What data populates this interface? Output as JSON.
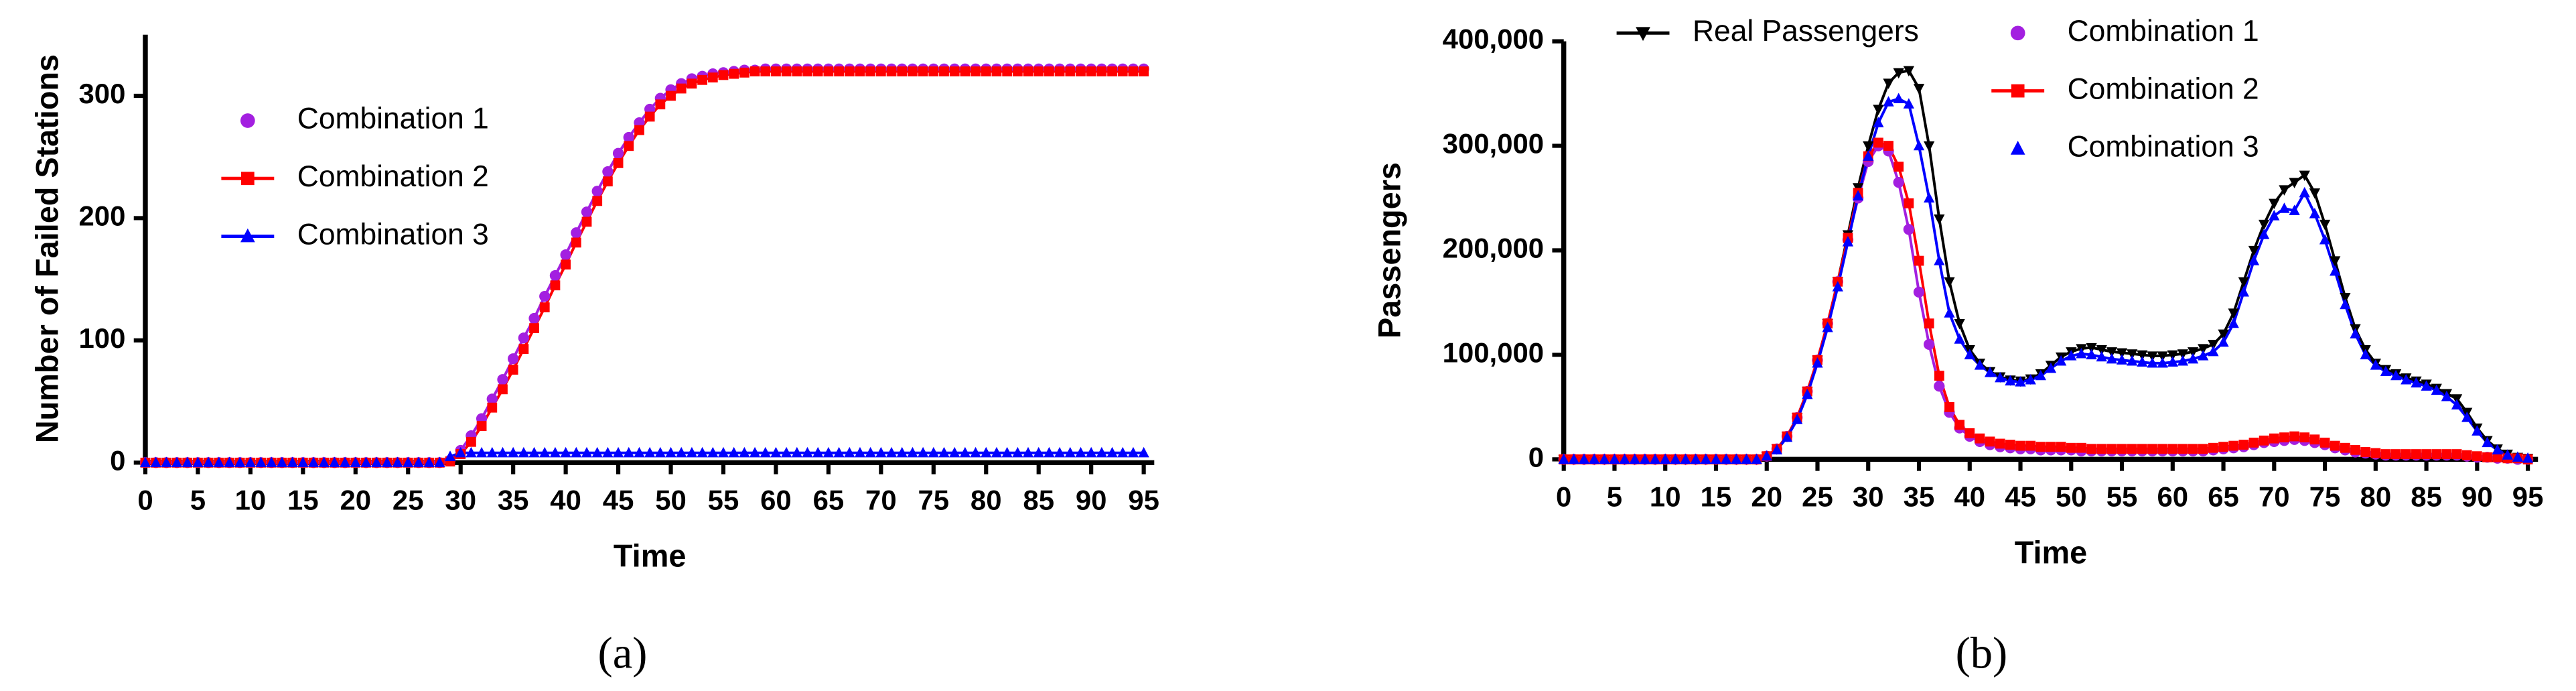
{
  "chart_data": [
    {
      "type": "line",
      "caption": "(a)",
      "x_label": "Time",
      "y_label": "Number of Failed Stations",
      "legend": "upper left",
      "x": [
        0,
        1,
        2,
        3,
        4,
        5,
        6,
        7,
        8,
        9,
        10,
        11,
        12,
        13,
        14,
        15,
        16,
        17,
        18,
        19,
        20,
        21,
        22,
        23,
        24,
        25,
        26,
        27,
        28,
        29,
        30,
        31,
        32,
        33,
        34,
        35,
        36,
        37,
        38,
        39,
        40,
        41,
        42,
        43,
        44,
        45,
        46,
        47,
        48,
        49,
        50,
        51,
        52,
        53,
        54,
        55,
        56,
        57,
        58,
        59,
        60,
        61,
        62,
        63,
        64,
        65,
        66,
        67,
        68,
        69,
        70,
        71,
        72,
        73,
        74,
        75,
        76,
        77,
        78,
        79,
        80,
        81,
        82,
        83,
        84,
        85,
        86,
        87,
        88,
        89,
        90,
        91,
        92,
        93,
        94,
        95
      ],
      "xlim": [
        0,
        96
      ],
      "xticks": [
        0,
        5,
        10,
        15,
        20,
        25,
        30,
        35,
        40,
        45,
        50,
        55,
        60,
        65,
        70,
        75,
        80,
        85,
        90,
        95
      ],
      "ylim": [
        0,
        350
      ],
      "yticks": [
        0,
        100,
        200,
        300
      ],
      "series": [
        {
          "name": "Combination 1",
          "color": "#a31fe0",
          "marker": "circle",
          "legend_line": false,
          "values": [
            0,
            0,
            0,
            0,
            0,
            0,
            0,
            0,
            0,
            0,
            0,
            0,
            0,
            0,
            0,
            0,
            0,
            0,
            0,
            0,
            0,
            0,
            0,
            0,
            0,
            0,
            0,
            0,
            0,
            2,
            10,
            22,
            36,
            52,
            68,
            85,
            102,
            118,
            136,
            153,
            170,
            188,
            205,
            222,
            238,
            253,
            266,
            278,
            289,
            298,
            305,
            310,
            314,
            316,
            318,
            319,
            320,
            321,
            321,
            322,
            322,
            322,
            322,
            322,
            322,
            322,
            322,
            322,
            322,
            322,
            322,
            322,
            322,
            322,
            322,
            322,
            322,
            322,
            322,
            322,
            322,
            322,
            322,
            322,
            322,
            322,
            322,
            322,
            322,
            322,
            322,
            322,
            322,
            322,
            322,
            322
          ]
        },
        {
          "name": "Combination 2",
          "color": "#ff0000",
          "marker": "square",
          "legend_line": true,
          "values": [
            0,
            0,
            0,
            0,
            0,
            0,
            0,
            0,
            0,
            0,
            0,
            0,
            0,
            0,
            0,
            0,
            0,
            0,
            0,
            0,
            0,
            0,
            0,
            0,
            0,
            0,
            0,
            0,
            0,
            1,
            7,
            17,
            30,
            45,
            60,
            76,
            93,
            110,
            127,
            145,
            162,
            180,
            197,
            214,
            230,
            245,
            259,
            272,
            283,
            293,
            300,
            306,
            310,
            313,
            315,
            317,
            318,
            319,
            320,
            320,
            320,
            320,
            320,
            320,
            320,
            320,
            320,
            320,
            320,
            320,
            320,
            320,
            320,
            320,
            320,
            320,
            320,
            320,
            320,
            320,
            320,
            320,
            320,
            320,
            320,
            320,
            320,
            320,
            320,
            320,
            320,
            320,
            320,
            320,
            320,
            320
          ]
        },
        {
          "name": "Combination 3",
          "color": "#0000ff",
          "marker": "triangle",
          "legend_line": true,
          "values": [
            0,
            0,
            0,
            0,
            0,
            0,
            0,
            0,
            0,
            0,
            0,
            0,
            0,
            0,
            0,
            0,
            0,
            0,
            0,
            0,
            0,
            0,
            0,
            0,
            0,
            0,
            0,
            0,
            0,
            5,
            8,
            8,
            8,
            8,
            8,
            8,
            8,
            8,
            8,
            8,
            8,
            8,
            8,
            8,
            8,
            8,
            8,
            8,
            8,
            8,
            8,
            8,
            8,
            8,
            8,
            8,
            8,
            8,
            8,
            8,
            8,
            8,
            8,
            8,
            8,
            8,
            8,
            8,
            8,
            8,
            8,
            8,
            8,
            8,
            8,
            8,
            8,
            8,
            8,
            8,
            8,
            8,
            8,
            8,
            8,
            8,
            8,
            8,
            8,
            8,
            8,
            8,
            8,
            8,
            8,
            8
          ]
        }
      ]
    },
    {
      "type": "line",
      "caption": "(b)",
      "x_label": "Time",
      "y_label": "Passengers",
      "legend": "top",
      "x": [
        0,
        1,
        2,
        3,
        4,
        5,
        6,
        7,
        8,
        9,
        10,
        11,
        12,
        13,
        14,
        15,
        16,
        17,
        18,
        19,
        20,
        21,
        22,
        23,
        24,
        25,
        26,
        27,
        28,
        29,
        30,
        31,
        32,
        33,
        34,
        35,
        36,
        37,
        38,
        39,
        40,
        41,
        42,
        43,
        44,
        45,
        46,
        47,
        48,
        49,
        50,
        51,
        52,
        53,
        54,
        55,
        56,
        57,
        58,
        59,
        60,
        61,
        62,
        63,
        64,
        65,
        66,
        67,
        68,
        69,
        70,
        71,
        72,
        73,
        74,
        75,
        76,
        77,
        78,
        79,
        80,
        81,
        82,
        83,
        84,
        85,
        86,
        87,
        88,
        89,
        90,
        91,
        92,
        93,
        94,
        95
      ],
      "xlim": [
        0,
        96
      ],
      "xticks": [
        0,
        5,
        10,
        15,
        20,
        25,
        30,
        35,
        40,
        45,
        50,
        55,
        60,
        65,
        70,
        75,
        80,
        85,
        90,
        95
      ],
      "ylim": [
        0,
        400000
      ],
      "yticks": [
        0,
        {
          "value": 100000,
          "label": "100,000"
        },
        {
          "value": 200000,
          "label": "200,000"
        },
        {
          "value": 300000,
          "label": "300,000"
        },
        {
          "value": 400000,
          "label": "400,000"
        }
      ],
      "series": [
        {
          "name": "Real Passengers",
          "color": "#000000",
          "marker": "triangle-down",
          "legend_line": true,
          "values": [
            0,
            0,
            0,
            0,
            0,
            0,
            0,
            0,
            0,
            0,
            0,
            0,
            0,
            0,
            0,
            0,
            0,
            0,
            0,
            0,
            3000,
            10000,
            22000,
            40000,
            65000,
            95000,
            130000,
            170000,
            215000,
            260000,
            300000,
            335000,
            360000,
            370000,
            372000,
            355000,
            300000,
            230000,
            170000,
            130000,
            105000,
            92000,
            84000,
            79000,
            76000,
            75000,
            77000,
            82000,
            90000,
            98000,
            103000,
            106000,
            107000,
            105000,
            103000,
            102000,
            101000,
            100000,
            99000,
            99000,
            100000,
            101000,
            103000,
            106000,
            110000,
            120000,
            140000,
            170000,
            200000,
            225000,
            245000,
            258000,
            265000,
            272000,
            255000,
            225000,
            190000,
            155000,
            125000,
            105000,
            92000,
            86000,
            82000,
            78000,
            75000,
            72000,
            68000,
            63000,
            58000,
            45000,
            30000,
            18000,
            10000,
            5000,
            2000,
            1000
          ]
        },
        {
          "name": "Combination 1",
          "color": "#a31fe0",
          "marker": "circle",
          "legend_line": false,
          "values": [
            0,
            0,
            0,
            0,
            0,
            0,
            0,
            0,
            0,
            0,
            0,
            0,
            0,
            0,
            0,
            0,
            0,
            0,
            0,
            0,
            3000,
            10000,
            22000,
            40000,
            65000,
            95000,
            130000,
            170000,
            210000,
            250000,
            285000,
            300000,
            295000,
            265000,
            220000,
            160000,
            110000,
            70000,
            45000,
            30000,
            22000,
            17000,
            14000,
            12000,
            11000,
            10000,
            10000,
            9000,
            9000,
            9000,
            9000,
            8000,
            8000,
            8000,
            8000,
            8000,
            8000,
            8000,
            8000,
            8000,
            8000,
            8000,
            8000,
            8000,
            9000,
            10000,
            11000,
            12000,
            14000,
            16000,
            17000,
            18000,
            19000,
            18000,
            16000,
            14000,
            11000,
            9000,
            7000,
            6000,
            5000,
            4000,
            4000,
            4000,
            4000,
            4000,
            4000,
            4000,
            4000,
            3000,
            2000,
            2000,
            1000,
            1000,
            0,
            0
          ]
        },
        {
          "name": "Combination 2",
          "color": "#ff0000",
          "marker": "square",
          "legend_line": true,
          "values": [
            0,
            0,
            0,
            0,
            0,
            0,
            0,
            0,
            0,
            0,
            0,
            0,
            0,
            0,
            0,
            0,
            0,
            0,
            0,
            0,
            3000,
            10000,
            22000,
            40000,
            65000,
            95000,
            130000,
            170000,
            212000,
            255000,
            290000,
            303000,
            300000,
            280000,
            245000,
            190000,
            130000,
            80000,
            50000,
            33000,
            25000,
            20000,
            17000,
            15000,
            14000,
            13000,
            13000,
            12000,
            12000,
            12000,
            11000,
            11000,
            10000,
            10000,
            10000,
            10000,
            10000,
            10000,
            10000,
            10000,
            10000,
            10000,
            10000,
            10000,
            11000,
            12000,
            13000,
            14000,
            16000,
            18000,
            20000,
            21000,
            22000,
            21000,
            19000,
            16000,
            13000,
            11000,
            9000,
            7000,
            6000,
            5000,
            5000,
            5000,
            5000,
            5000,
            5000,
            5000,
            5000,
            4000,
            3000,
            2000,
            2000,
            1000,
            1000,
            0
          ]
        },
        {
          "name": "Combination 3",
          "color": "#0000ff",
          "marker": "triangle",
          "legend_line": false,
          "values": [
            0,
            0,
            0,
            0,
            0,
            0,
            0,
            0,
            0,
            0,
            0,
            0,
            0,
            0,
            0,
            0,
            0,
            0,
            0,
            0,
            3000,
            9000,
            21000,
            38000,
            62000,
            92000,
            126000,
            165000,
            208000,
            252000,
            290000,
            322000,
            342000,
            345000,
            340000,
            300000,
            250000,
            190000,
            140000,
            115000,
            100000,
            90000,
            83000,
            78000,
            75000,
            74000,
            76000,
            80000,
            87000,
            94000,
            99000,
            101000,
            100000,
            98000,
            96000,
            95000,
            94000,
            93000,
            92000,
            92000,
            93000,
            94000,
            96000,
            99000,
            103000,
            112000,
            130000,
            160000,
            190000,
            215000,
            233000,
            240000,
            238000,
            255000,
            235000,
            210000,
            180000,
            148000,
            120000,
            100000,
            90000,
            84000,
            80000,
            76000,
            73000,
            70000,
            66000,
            60000,
            52000,
            40000,
            27000,
            16000,
            9000,
            4000,
            2000,
            1000
          ]
        }
      ]
    }
  ]
}
